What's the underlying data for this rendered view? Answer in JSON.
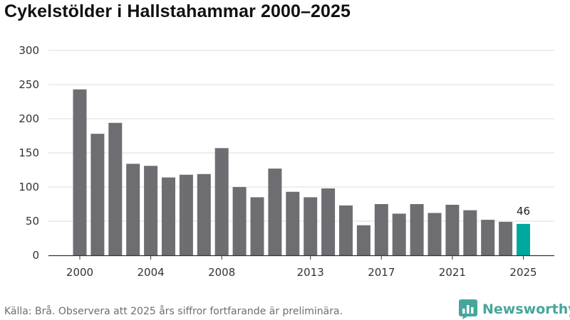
{
  "chart_data": {
    "type": "bar",
    "title": "Cykelstölder i Hallstahammar 2000–2025",
    "x": [
      2000,
      2001,
      2002,
      2003,
      2004,
      2005,
      2006,
      2007,
      2008,
      2009,
      2010,
      2011,
      2012,
      2013,
      2014,
      2015,
      2016,
      2017,
      2018,
      2019,
      2020,
      2021,
      2022,
      2023,
      2024,
      2025
    ],
    "values": [
      243,
      178,
      194,
      134,
      131,
      114,
      118,
      119,
      157,
      100,
      85,
      127,
      93,
      85,
      98,
      73,
      44,
      75,
      61,
      75,
      62,
      74,
      66,
      52,
      49,
      46
    ],
    "x_tick_labels": [
      "2000",
      "2004",
      "2008",
      "2013",
      "2017",
      "2021",
      "2025"
    ],
    "y_ticks": [
      0,
      50,
      100,
      150,
      200,
      250,
      300
    ],
    "ylim": [
      0,
      300
    ],
    "grid": true,
    "highlight": {
      "year": 2025,
      "label": "46"
    },
    "colors": {
      "bar": "#6e6d72",
      "highlight": "#00a89d",
      "grid": "#dcdcdc",
      "axis": "#333333"
    }
  },
  "source": "Källa: Brå. Observera att 2025 års siffror fortfarande är preliminära.",
  "brand": {
    "name": "Newsworthy",
    "color": "#46a69b",
    "icon": "newsworthy-logo-icon"
  }
}
